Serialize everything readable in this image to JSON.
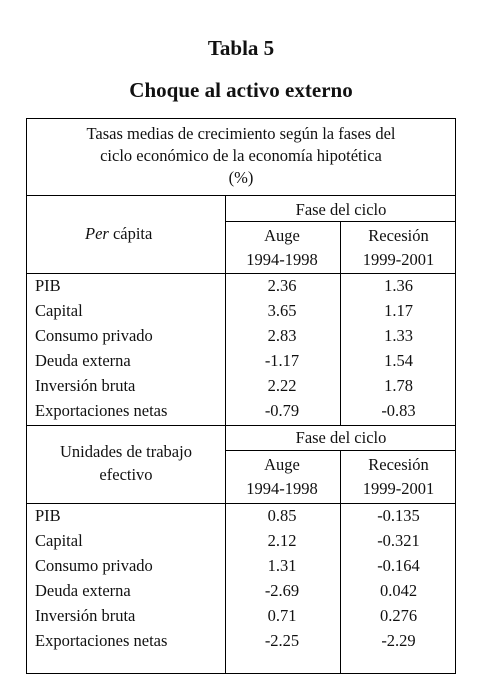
{
  "title": "Tabla 5",
  "subtitle": "Choque al activo externo",
  "table": {
    "caption_lines": [
      "Tasas medias de crecimiento según la fases del",
      "ciclo económico de la economía hipotética",
      "(%)"
    ],
    "section1": {
      "label_italic": "Per",
      "label_rest": " cápita",
      "phase_header": "Fase del ciclo",
      "col1_name": "Auge",
      "col1_years": "1994-1998",
      "col2_name": "Recesión",
      "col2_years": "1999-2001",
      "rows": [
        {
          "label": "PIB",
          "v1": "2.36",
          "v2": "1.36"
        },
        {
          "label": "Capital",
          "v1": "3.65",
          "v2": "1.17"
        },
        {
          "label": "Consumo privado",
          "v1": "2.83",
          "v2": "1.33"
        },
        {
          "label": "Deuda externa",
          "v1": "-1.17",
          "v2": "1.54"
        },
        {
          "label": "Inversión bruta",
          "v1": "2.22",
          "v2": "1.78"
        },
        {
          "label": "Exportaciones netas",
          "v1": "-0.79",
          "v2": "-0.83"
        }
      ]
    },
    "section2": {
      "label_line1": "Unidades de trabajo",
      "label_line2": "efectivo",
      "phase_header": "Fase del ciclo",
      "col1_name": "Auge",
      "col1_years": "1994-1998",
      "col2_name": "Recesión",
      "col2_years": "1999-2001",
      "rows": [
        {
          "label": "PIB",
          "v1": "0.85",
          "v2": "-0.135"
        },
        {
          "label": "Capital",
          "v1": "2.12",
          "v2": "-0.321"
        },
        {
          "label": "Consumo privado",
          "v1": "1.31",
          "v2": "-0.164"
        },
        {
          "label": "Deuda externa",
          "v1": "-2.69",
          "v2": "0.042"
        },
        {
          "label": "Inversión bruta",
          "v1": "0.71",
          "v2": "0.276"
        },
        {
          "label": "Exportaciones netas",
          "v1": "-2.25",
          "v2": "-2.29"
        }
      ]
    }
  }
}
